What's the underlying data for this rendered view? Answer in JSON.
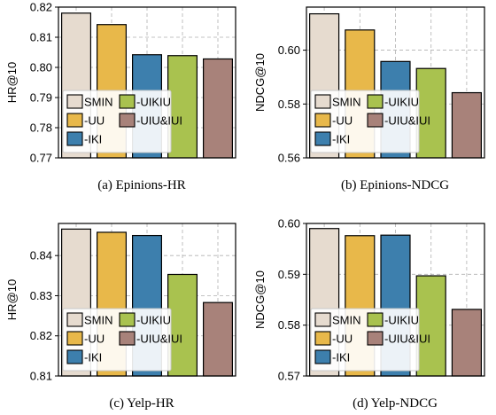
{
  "colors": {
    "SMIN": "#e6dbcf",
    "-UU": "#e8b84a",
    "-IKI": "#3d7fad",
    "-UIKIU": "#a9c24f",
    "-UIU&IUI": "#a8827a"
  },
  "chart_data": [
    {
      "type": "bar",
      "caption": "(a) Epinions-HR",
      "categories": [
        "SMIN",
        "-UU",
        "-IKI",
        "-UIKIU",
        "-UIU&IUI"
      ],
      "values": [
        0.818,
        0.8142,
        0.8042,
        0.8039,
        0.8028
      ],
      "ylabel": "HR@10",
      "ylim": [
        0.77,
        0.82
      ],
      "yticks": [
        "0.77",
        "0.78",
        "0.79",
        "0.80",
        "0.81",
        "0.82"
      ],
      "grid": true,
      "legend_position": "bottom-left"
    },
    {
      "type": "bar",
      "caption": "(b) Epinions-NDCG",
      "categories": [
        "SMIN",
        "-UU",
        "-IKI",
        "-UIKIU",
        "-UIU&IUI"
      ],
      "values": [
        0.6135,
        0.6075,
        0.5958,
        0.5932,
        0.5842
      ],
      "ylabel": "NDCG@10",
      "ylim": [
        0.56,
        0.616
      ],
      "yticks": [
        "0.56",
        "0.58",
        "0.60"
      ],
      "grid": true,
      "legend_position": "bottom-left"
    },
    {
      "type": "bar",
      "caption": "(c) Yelp-HR",
      "categories": [
        "SMIN",
        "-UU",
        "-IKI",
        "-UIKIU",
        "-UIU&IUI"
      ],
      "values": [
        0.8466,
        0.8458,
        0.845,
        0.8353,
        0.8283
      ],
      "ylabel": "HR@10",
      "ylim": [
        0.81,
        0.848
      ],
      "yticks": [
        "0.81",
        "0.82",
        "0.83",
        "0.84"
      ],
      "grid": true,
      "legend_position": "bottom-left"
    },
    {
      "type": "bar",
      "caption": "(d) Yelp-NDCG",
      "categories": [
        "SMIN",
        "-UU",
        "-IKI",
        "-UIKIU",
        "-UIU&IUI"
      ],
      "values": [
        0.599,
        0.5976,
        0.5977,
        0.5897,
        0.5831
      ],
      "ylabel": "NDCG@10",
      "ylim": [
        0.57,
        0.6
      ],
      "yticks": [
        "0.57",
        "0.58",
        "0.59",
        "0.60"
      ],
      "grid": true,
      "legend_position": "bottom-left"
    }
  ]
}
